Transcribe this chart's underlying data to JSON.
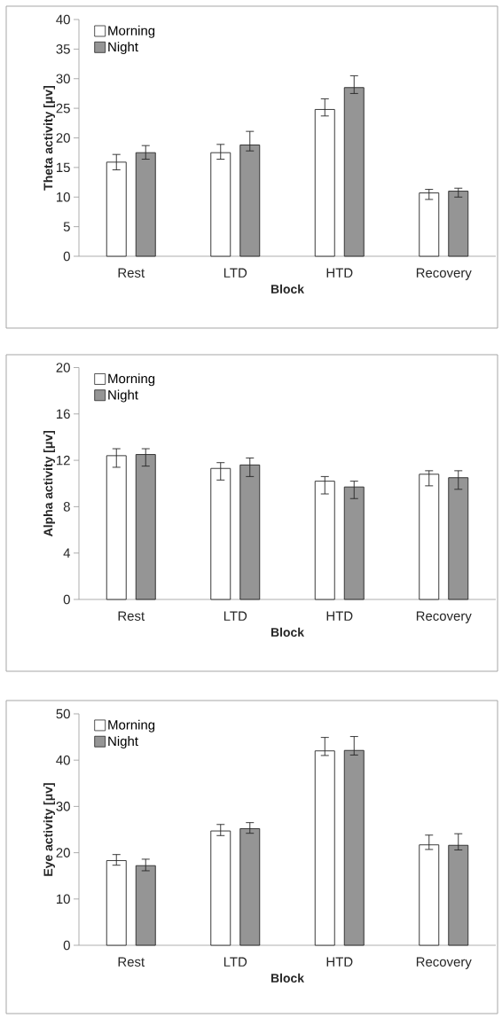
{
  "chart_data": [
    {
      "type": "bar",
      "categories": [
        "Rest",
        "LTD",
        "HTD",
        "Recovery"
      ],
      "xlabel": "Block",
      "ylabel": "Theta activity [μv]",
      "ylim": [
        0,
        40
      ],
      "yticks": [
        0,
        5,
        10,
        15,
        20,
        25,
        30,
        35,
        40
      ],
      "legend": "top left",
      "series": [
        {
          "name": "Morning",
          "color": "#ffffff",
          "values": [
            15.9,
            17.5,
            24.8,
            10.7
          ],
          "errors": [
            [
              14.6,
              17.2
            ],
            [
              16.4,
              18.9
            ],
            [
              23.7,
              26.6
            ],
            [
              9.6,
              11.3
            ]
          ]
        },
        {
          "name": "Night",
          "color": "#959595",
          "values": [
            17.5,
            18.8,
            28.5,
            11.0
          ],
          "errors": [
            [
              16.4,
              18.7
            ],
            [
              17.8,
              21.1
            ],
            [
              27.5,
              30.5
            ],
            [
              10.0,
              11.5
            ]
          ]
        }
      ]
    },
    {
      "type": "bar",
      "categories": [
        "Rest",
        "LTD",
        "HTD",
        "Recovery"
      ],
      "xlabel": "Block",
      "ylabel": "Alpha activity [μv]",
      "ylim": [
        0,
        20
      ],
      "yticks": [
        0,
        4,
        8,
        12,
        16,
        20
      ],
      "legend": "top left",
      "series": [
        {
          "name": "Morning",
          "color": "#ffffff",
          "values": [
            12.4,
            11.3,
            10.2,
            10.8
          ],
          "errors": [
            [
              11.4,
              13.0
            ],
            [
              10.3,
              11.8
            ],
            [
              9.1,
              10.6
            ],
            [
              9.8,
              11.1
            ]
          ]
        },
        {
          "name": "Night",
          "color": "#959595",
          "values": [
            12.5,
            11.6,
            9.7,
            10.5
          ],
          "errors": [
            [
              11.5,
              13.0
            ],
            [
              10.6,
              12.2
            ],
            [
              8.7,
              10.2
            ],
            [
              9.5,
              11.1
            ]
          ]
        }
      ]
    },
    {
      "type": "bar",
      "categories": [
        "Rest",
        "LTD",
        "HTD",
        "Recovery"
      ],
      "xlabel": "Block",
      "ylabel": "Eye activity [μv]",
      "ylim": [
        0,
        50
      ],
      "yticks": [
        0,
        10,
        20,
        30,
        40,
        50
      ],
      "legend": "top left",
      "series": [
        {
          "name": "Morning",
          "color": "#ffffff",
          "values": [
            18.3,
            24.7,
            42.0,
            21.7
          ],
          "errors": [
            [
              17.3,
              19.6
            ],
            [
              23.7,
              26.1
            ],
            [
              41.0,
              44.9
            ],
            [
              20.7,
              23.8
            ]
          ]
        },
        {
          "name": "Night",
          "color": "#959595",
          "values": [
            17.2,
            25.2,
            42.1,
            21.6
          ],
          "errors": [
            [
              16.1,
              18.6
            ],
            [
              24.2,
              26.5
            ],
            [
              41.1,
              45.1
            ],
            [
              20.6,
              24.1
            ]
          ]
        }
      ]
    }
  ]
}
